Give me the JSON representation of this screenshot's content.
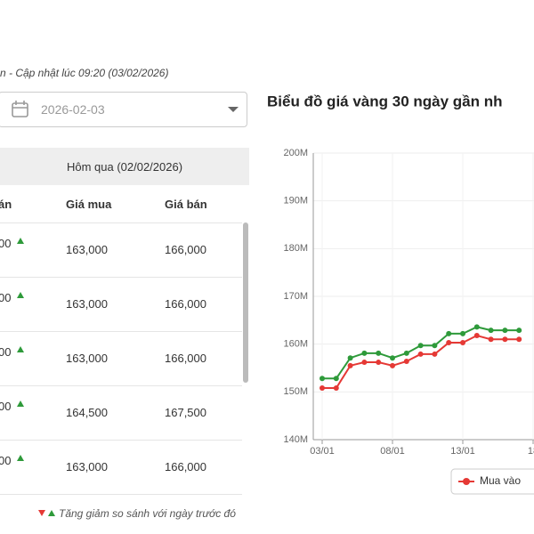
{
  "header": {
    "update_text": "n - Cập nhật lúc 09:20 (03/02/2026)",
    "date": "2026-02-03"
  },
  "table": {
    "group_header": "Hôm qua (02/02/2026)",
    "columns": [
      "án",
      "Giá mua",
      "Giá bán"
    ],
    "rows": [
      [
        "00",
        "163,000",
        "166,000"
      ],
      [
        "00",
        "163,000",
        "166,000"
      ],
      [
        "00",
        "163,000",
        "166,000"
      ],
      [
        "00",
        "164,500",
        "167,500"
      ],
      [
        "00",
        "163,000",
        "166,000"
      ]
    ],
    "footnote": "Tăng giảm so sánh với ngày trước đó"
  },
  "chart_data": {
    "type": "line",
    "title": "Biểu đồ giá vàng 30 ngày gần nh",
    "categories": [
      "03/01",
      null,
      null,
      null,
      null,
      "08/01",
      null,
      null,
      null,
      null,
      "13/01",
      null,
      null,
      null,
      null,
      "18"
    ],
    "series": [
      {
        "color": "#2e9a3a",
        "values": [
          152.8,
          152.8,
          157.1,
          158.1,
          158.1,
          157.1,
          158.1,
          159.7,
          159.7,
          162.2,
          162.2,
          163.6,
          162.9,
          162.9,
          162.9,
          null
        ]
      },
      {
        "name": "Mua vào",
        "color": "#e53935",
        "values": [
          150.8,
          150.8,
          155.5,
          156.2,
          156.2,
          155.5,
          156.4,
          157.9,
          157.9,
          160.3,
          160.3,
          161.8,
          161.0,
          161.0,
          161.0,
          null
        ]
      }
    ],
    "ylim": [
      140,
      200
    ],
    "yticks": [
      {
        "value": 140,
        "label": "140M"
      },
      {
        "value": 150,
        "label": "150M"
      },
      {
        "value": 160,
        "label": "160M"
      },
      {
        "value": 170,
        "label": "170M"
      },
      {
        "value": 180,
        "label": "180M"
      },
      {
        "value": 190,
        "label": "190M"
      },
      {
        "value": 200,
        "label": "200M"
      }
    ],
    "grid": true
  }
}
